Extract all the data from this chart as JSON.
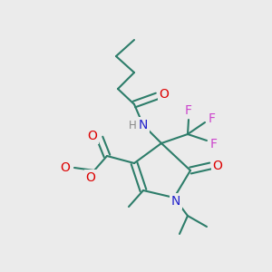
{
  "bg_color": "#ebebeb",
  "bond_color": "#2d7d6a",
  "bond_width": 1.5,
  "atom_colors": {
    "O": "#dd0000",
    "N": "#2222cc",
    "F": "#cc44cc",
    "H": "#888888",
    "C": "#2d7d6a"
  },
  "font_size_atom": 10,
  "font_size_small": 8.5
}
